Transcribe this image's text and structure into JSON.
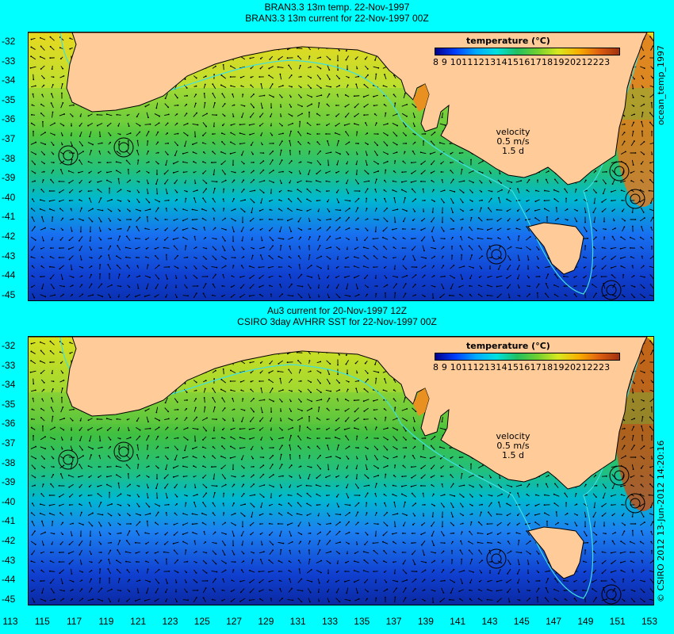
{
  "top": {
    "title_line1": "BRAN3.3 13m temp. 22-Nov-1997",
    "title_line2": "BRAN3.3 13m current for 22-Nov-1997 00Z",
    "legend_title": "temperature  (°C)",
    "legend_ticks": "8  9 1011121314151617181920212223",
    "velocity_label": "velocity",
    "velocity_value": "0.5 m/s",
    "velocity_scale": "1.5 d",
    "side_label": "ocean_temp_1997"
  },
  "bottom": {
    "title_line1": "Au3 current for 20-Nov-1997 12Z",
    "title_line2": "CSIRO 3day AVHRR SST for 22-Nov-1997 00Z",
    "legend_title": "temperature  (°C)",
    "legend_ticks": "8  9 1011121314151617181920212223",
    "velocity_label": "velocity",
    "velocity_value": "0.5 m/s",
    "velocity_scale": "1.5 d",
    "side_label": "© CSIRO 2012  13-Jun-2012 14:20:16"
  },
  "axes": {
    "lat_ticks": [
      "-32",
      "-33",
      "-34",
      "-35",
      "-36",
      "-37",
      "-38",
      "-39",
      "-40",
      "-41",
      "-42",
      "-43",
      "-44",
      "-45"
    ],
    "lon_ticks": [
      "113",
      "115",
      "117",
      "119",
      "121",
      "123",
      "125",
      "127",
      "129",
      "131",
      "133",
      "135",
      "137",
      "139",
      "141",
      "143",
      "145",
      "147",
      "149",
      "151",
      "153"
    ]
  },
  "colors": {
    "background": "#00ffff",
    "land": "#ffcc99",
    "arrows": "#000000"
  }
}
